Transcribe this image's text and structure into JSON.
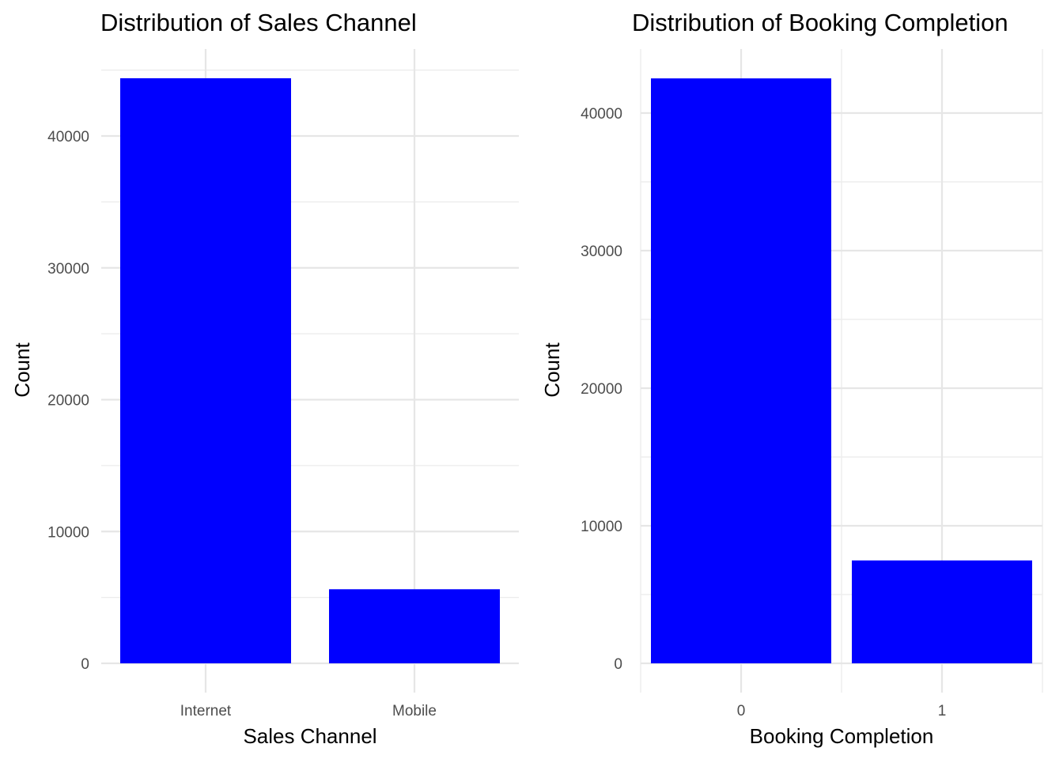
{
  "chart_data": [
    {
      "type": "bar",
      "title": "Distribution of Sales Channel",
      "xlabel": "Sales Channel",
      "ylabel": "Count",
      "categories": [
        "Internet",
        "Mobile"
      ],
      "values": [
        44380,
        5620
      ],
      "ylim": [
        0,
        46000
      ],
      "yticks": [
        0,
        10000,
        20000,
        30000,
        40000
      ],
      "bar_color": "#0000ff",
      "grid": true
    },
    {
      "type": "bar",
      "title": "Distribution of Booking Completion",
      "xlabel": "Booking Completion",
      "ylabel": "Count",
      "categories": [
        "0",
        "1"
      ],
      "values": [
        42520,
        7480
      ],
      "ylim": [
        0,
        44000
      ],
      "yticks": [
        0,
        10000,
        20000,
        30000,
        40000
      ],
      "bar_color": "#0000ff",
      "grid": true
    }
  ]
}
